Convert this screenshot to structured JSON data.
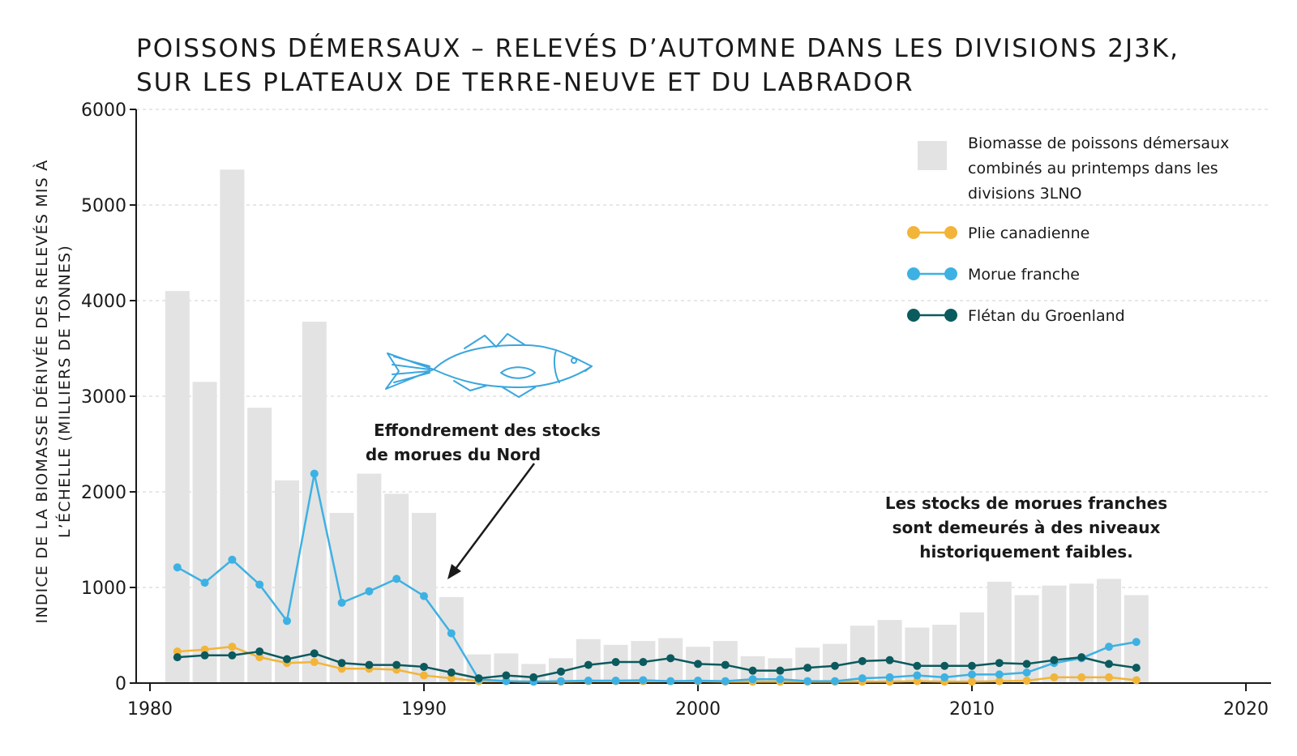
{
  "chart_data": {
    "type": "bar",
    "title_lines": [
      "POISSONS DÉMERSAUX – RELEVÉS D’AUTOMNE DANS LES DIVISIONS 2J3K,",
      "SUR LES PLATEAUX DE TERRE-NEUVE ET DU LABRADOR"
    ],
    "ylabel_lines": [
      "INDICE DE LA BIOMASSE DÉRIVÉE DES RELEVÉS MIS À",
      "L’ÉCHELLE (MILLIERS DE TONNES)"
    ],
    "xlabel": "",
    "xlim": [
      1980,
      2021
    ],
    "ylim": [
      0,
      6000
    ],
    "x_ticks": [
      1980,
      1990,
      2000,
      2010,
      2020
    ],
    "y_ticks": [
      0,
      1000,
      2000,
      3000,
      4000,
      5000,
      6000
    ],
    "grid": "horizontal dashed",
    "legend_position": "top-right",
    "x": [
      1981,
      1982,
      1983,
      1984,
      1985,
      1986,
      1987,
      1988,
      1989,
      1990,
      1991,
      1992,
      1993,
      1994,
      1995,
      1996,
      1997,
      1998,
      1999,
      2000,
      2001,
      2002,
      2003,
      2004,
      2005,
      2006,
      2007,
      2008,
      2009,
      2010,
      2011,
      2012,
      2013,
      2014,
      2015,
      2016
    ],
    "bars": {
      "name_lines": [
        "Biomasse de poissons démersaux",
        "combinés au printemps dans les",
        "divisions 3LNO"
      ],
      "color": "#e3e3e3",
      "values": [
        4100,
        3150,
        5370,
        2880,
        2120,
        3780,
        1780,
        2190,
        1980,
        1780,
        900,
        300,
        310,
        200,
        260,
        460,
        400,
        440,
        470,
        380,
        440,
        280,
        260,
        370,
        410,
        600,
        660,
        580,
        610,
        740,
        1060,
        920,
        1020,
        1040,
        1090,
        920
      ]
    },
    "series": [
      {
        "name": "Plie canadienne",
        "color": "#f2b539",
        "values": [
          330,
          350,
          380,
          270,
          210,
          220,
          150,
          150,
          140,
          80,
          50,
          20,
          20,
          15,
          15,
          20,
          20,
          20,
          20,
          20,
          15,
          15,
          15,
          15,
          15,
          15,
          15,
          20,
          15,
          15,
          20,
          25,
          60,
          60,
          60,
          30
        ]
      },
      {
        "name": "Morue franche",
        "color": "#3db1e3",
        "values": [
          1210,
          1050,
          1290,
          1030,
          650,
          2190,
          840,
          960,
          1090,
          910,
          520,
          40,
          20,
          15,
          20,
          25,
          25,
          30,
          20,
          25,
          20,
          40,
          40,
          20,
          20,
          50,
          60,
          80,
          60,
          90,
          90,
          110,
          210,
          260,
          380,
          430
        ]
      },
      {
        "name": "Flétan du Groenland",
        "color": "#0b5a5e",
        "values": [
          270,
          290,
          290,
          330,
          250,
          310,
          210,
          190,
          190,
          170,
          110,
          50,
          80,
          60,
          120,
          190,
          220,
          220,
          260,
          200,
          190,
          130,
          130,
          160,
          180,
          230,
          240,
          180,
          180,
          180,
          210,
          200,
          240,
          270,
          200,
          160
        ]
      }
    ],
    "annotations": [
      {
        "id": "collapse",
        "lines": [
          "Effondrement des stocks",
          "de morues du Nord"
        ]
      },
      {
        "id": "low",
        "lines": [
          "Les stocks de morues franches",
          "sont demeurés à des niveaux",
          "historiquement faibles."
        ]
      }
    ]
  }
}
